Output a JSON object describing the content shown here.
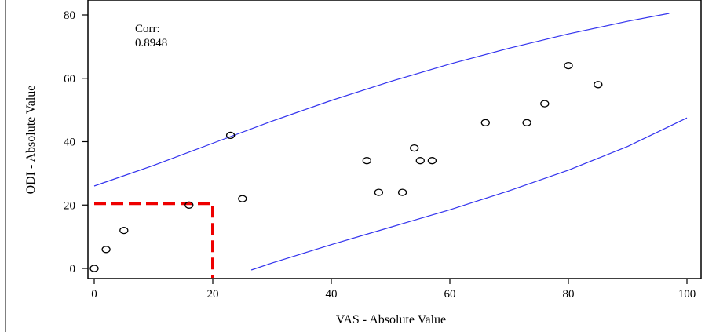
{
  "chart_data": {
    "type": "scatter",
    "title": "",
    "xlabel": "VAS - Absolute Value",
    "ylabel": "ODI - Absolute Value",
    "xlim": [
      -3,
      100
    ],
    "ylim": [
      -2,
      80
    ],
    "x_ticks": [
      "0",
      "20",
      "40",
      "60",
      "80",
      "100"
    ],
    "y_ticks": [
      "0",
      "20",
      "40",
      "60",
      "80"
    ],
    "annotation": {
      "label": "Corr:",
      "value": "0.8948"
    },
    "series": [
      {
        "marker": "open-circle",
        "color": "#000000",
        "points": [
          {
            "x": 0,
            "y": 0
          },
          {
            "x": 2,
            "y": 6
          },
          {
            "x": 5,
            "y": 12
          },
          {
            "x": 16,
            "y": 20
          },
          {
            "x": 23,
            "y": 42
          },
          {
            "x": 25,
            "y": 22
          },
          {
            "x": 46,
            "y": 34
          },
          {
            "x": 48,
            "y": 24
          },
          {
            "x": 52,
            "y": 24
          },
          {
            "x": 54,
            "y": 38
          },
          {
            "x": 55,
            "y": 34
          },
          {
            "x": 57,
            "y": 34
          },
          {
            "x": 66,
            "y": 46
          },
          {
            "x": 73,
            "y": 46
          },
          {
            "x": 76,
            "y": 52
          },
          {
            "x": 80,
            "y": 64
          },
          {
            "x": 85,
            "y": 58
          }
        ]
      }
    ],
    "bands": [
      {
        "role": "upper",
        "color": "#3333ee",
        "points": [
          {
            "x": 0,
            "y": 26
          },
          {
            "x": 10,
            "y": 32.5
          },
          {
            "x": 20,
            "y": 39.5
          },
          {
            "x": 30,
            "y": 46.5
          },
          {
            "x": 40,
            "y": 53
          },
          {
            "x": 50,
            "y": 59
          },
          {
            "x": 60,
            "y": 64.5
          },
          {
            "x": 70,
            "y": 69.5
          },
          {
            "x": 80,
            "y": 74
          },
          {
            "x": 90,
            "y": 78
          },
          {
            "x": 97,
            "y": 80.5
          }
        ]
      },
      {
        "role": "lower",
        "color": "#3333ee",
        "points": [
          {
            "x": 26.5,
            "y": -0.5
          },
          {
            "x": 30,
            "y": 1.7
          },
          {
            "x": 40,
            "y": 7.5
          },
          {
            "x": 50,
            "y": 13
          },
          {
            "x": 60,
            "y": 18.5
          },
          {
            "x": 70,
            "y": 24.5
          },
          {
            "x": 80,
            "y": 31
          },
          {
            "x": 90,
            "y": 38.5
          },
          {
            "x": 100,
            "y": 47.5
          }
        ]
      }
    ],
    "highlight": {
      "color": "#ee0000",
      "style": "dashed",
      "points": [
        {
          "x": 0,
          "y": 20.5
        },
        {
          "x": 20,
          "y": 20.5
        },
        {
          "x": 20,
          "y": -3
        }
      ]
    },
    "grid": false
  }
}
